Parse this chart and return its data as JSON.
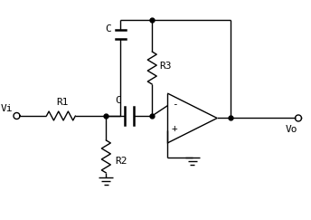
{
  "background_color": "#ffffff",
  "line_color": "#000000",
  "text_color": "#000000",
  "font_size": 8,
  "fig_width": 3.44,
  "fig_height": 2.43,
  "dpi": 100,
  "labels": {
    "vi": "Vi",
    "r1": "R1",
    "r2": "R2",
    "r3": "R3",
    "c_top": "C",
    "c_mid": "C",
    "vo": "Vo",
    "minus": "-",
    "plus": "+"
  }
}
